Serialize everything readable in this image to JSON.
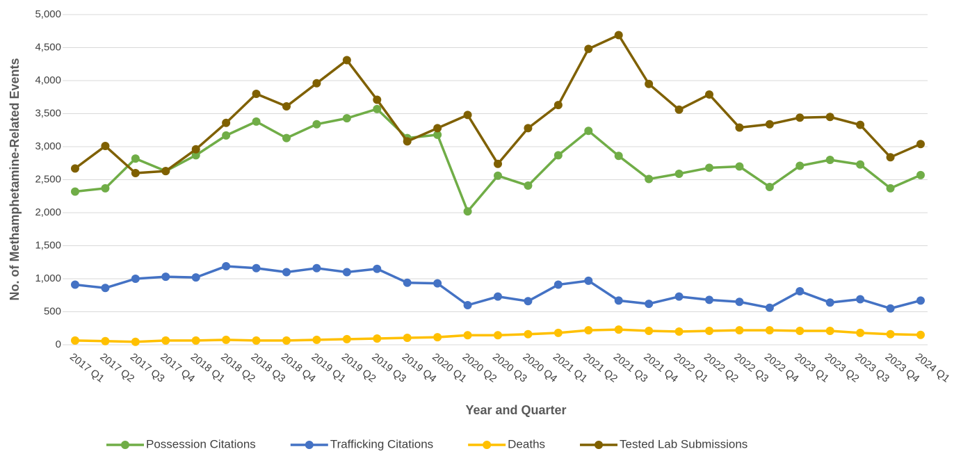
{
  "chart_data": {
    "type": "line",
    "y_label": "No. of Methamphetamine-Related Events",
    "x_label": "Year and Quarter",
    "categories": [
      "2017 Q1",
      "2017 Q2",
      "2017 Q3",
      "2017 Q4",
      "2018 Q1",
      "2018 Q2",
      "2018 Q3",
      "2018 Q4",
      "2019 Q1",
      "2019 Q2",
      "2019 Q3",
      "2019 Q4",
      "2020 Q1",
      "2020 Q2",
      "2020 Q3",
      "2020 Q4",
      "2021 Q1",
      "2021 Q2",
      "2021 Q3",
      "2021 Q4",
      "2022 Q1",
      "2022 Q2",
      "2022 Q3",
      "2022 Q4",
      "2023 Q1",
      "2023 Q2",
      "2023 Q3",
      "2023 Q4",
      "2024 Q1"
    ],
    "series": [
      {
        "name": "Possession Citations",
        "color": "#70ad47",
        "values": [
          2320,
          2370,
          2820,
          2630,
          2870,
          3170,
          3380,
          3130,
          3340,
          3430,
          3570,
          3130,
          3180,
          2020,
          2560,
          2410,
          2870,
          3240,
          2860,
          2510,
          2590,
          2680,
          2700,
          2390,
          2710,
          2800,
          2730,
          2370,
          2570
        ]
      },
      {
        "name": "Trafficking Citations",
        "color": "#4472c4",
        "values": [
          910,
          860,
          1000,
          1030,
          1020,
          1190,
          1160,
          1100,
          1160,
          1100,
          1150,
          940,
          930,
          600,
          730,
          660,
          910,
          970,
          670,
          620,
          730,
          680,
          650,
          560,
          810,
          640,
          690,
          550,
          670
        ]
      },
      {
        "name": "Deaths",
        "color": "#ffc000",
        "values": [
          65,
          55,
          45,
          65,
          65,
          75,
          65,
          65,
          75,
          85,
          95,
          105,
          115,
          145,
          145,
          160,
          180,
          220,
          230,
          210,
          200,
          210,
          220,
          220,
          210,
          210,
          180,
          160,
          150
        ]
      },
      {
        "name": "Tested Lab Submissions",
        "color": "#7f6000",
        "values": [
          2670,
          3010,
          2600,
          2630,
          2960,
          3360,
          3800,
          3610,
          3960,
          4310,
          3710,
          3080,
          3280,
          3480,
          2740,
          3280,
          3630,
          4480,
          4690,
          3950,
          3560,
          3790,
          3290,
          3340,
          3440,
          3450,
          3330,
          2840,
          3040
        ]
      }
    ],
    "ylim": [
      0,
      5000
    ],
    "yticks": [
      0,
      500,
      {
        "value": 1000,
        "label": "1,000"
      },
      {
        "value": 1500,
        "label": "1,500"
      },
      {
        "value": 2000,
        "label": "2,000"
      },
      {
        "value": 2500,
        "label": "2,500"
      },
      {
        "value": 3000,
        "label": "3,000"
      },
      {
        "value": 3500,
        "label": "3,500"
      },
      {
        "value": 4000,
        "label": "4,000"
      },
      {
        "value": 4500,
        "label": "4,500"
      },
      {
        "value": 5000,
        "label": "5,000"
      }
    ],
    "grid": true
  }
}
